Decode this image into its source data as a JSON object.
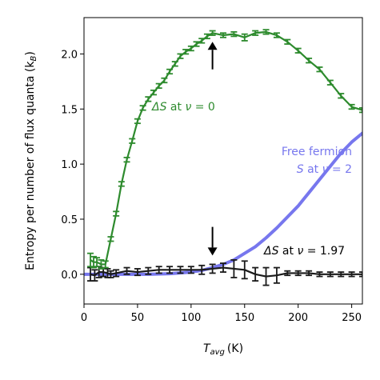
{
  "chart_data": {
    "type": "line",
    "xlabel_main": "T",
    "xlabel_sub": "avg",
    "xlabel_unit": "(K)",
    "ylabel": "Entropy per number of flux quanta (k",
    "ylabel_sub": "B",
    "ylabel_close": ")",
    "xlim": [
      0,
      260
    ],
    "ylim": [
      -0.27,
      2.33
    ],
    "xticks": [
      0,
      50,
      100,
      150,
      200,
      250
    ],
    "yticks": [
      0.0,
      0.5,
      1.0,
      1.5,
      2.0
    ],
    "series": [
      {
        "name_parts": [
          "ΔS",
          " at ",
          "ν",
          " = 0"
        ],
        "color": "#2e8b2e",
        "x": [
          6,
          9,
          12,
          16,
          20,
          25,
          30,
          35,
          40,
          45,
          50,
          55,
          60,
          65,
          70,
          75,
          80,
          85,
          90,
          95,
          100,
          105,
          110,
          115,
          120,
          130,
          140,
          150,
          160,
          170,
          180,
          190,
          200,
          210,
          220,
          230,
          240,
          250,
          260
        ],
        "y": [
          0.13,
          0.11,
          0.11,
          0.09,
          0.09,
          0.32,
          0.55,
          0.82,
          1.04,
          1.21,
          1.39,
          1.51,
          1.59,
          1.65,
          1.71,
          1.76,
          1.84,
          1.91,
          1.98,
          2.02,
          2.05,
          2.09,
          2.12,
          2.16,
          2.19,
          2.17,
          2.18,
          2.15,
          2.19,
          2.2,
          2.17,
          2.11,
          2.03,
          1.94,
          1.86,
          1.74,
          1.62,
          1.52,
          1.49
        ],
        "err": [
          0.06,
          0.05,
          0.04,
          0.04,
          0.03,
          0.02,
          0.02,
          0.02,
          0.02,
          0.02,
          0.02,
          0.02,
          0.02,
          0.02,
          0.02,
          0.02,
          0.02,
          0.02,
          0.02,
          0.02,
          0.02,
          0.02,
          0.02,
          0.02,
          0.02,
          0.02,
          0.02,
          0.03,
          0.02,
          0.02,
          0.02,
          0.02,
          0.02,
          0.02,
          0.02,
          0.02,
          0.02,
          0.02,
          0.02
        ]
      },
      {
        "name_parts": [
          "Free fermion",
          "S",
          " at ",
          "ν",
          " = 2"
        ],
        "color": "#7777ee",
        "x": [
          0,
          20,
          40,
          60,
          80,
          100,
          110,
          120,
          130,
          140,
          150,
          160,
          170,
          180,
          190,
          200,
          210,
          220,
          230,
          240,
          250,
          260
        ],
        "y": [
          0.0,
          0.0,
          0.0,
          0.0,
          0.005,
          0.02,
          0.035,
          0.06,
          0.09,
          0.13,
          0.19,
          0.25,
          0.33,
          0.42,
          0.52,
          0.62,
          0.74,
          0.86,
          0.98,
          1.1,
          1.2,
          1.28
        ]
      },
      {
        "name_parts": [
          "ΔS",
          " at ",
          "ν",
          " = 1.97"
        ],
        "color": "#1a1a1a",
        "x": [
          6,
          10,
          14,
          18,
          22,
          25,
          30,
          40,
          50,
          60,
          70,
          80,
          90,
          100,
          110,
          120,
          130,
          140,
          150,
          160,
          170,
          180,
          190,
          200,
          210,
          220,
          230,
          240,
          250,
          260
        ],
        "y": [
          0.0,
          -0.01,
          0.02,
          0.02,
          0.01,
          0.0,
          0.01,
          0.03,
          0.02,
          0.03,
          0.04,
          0.04,
          0.04,
          0.04,
          0.04,
          0.05,
          0.06,
          0.05,
          0.04,
          0.0,
          -0.02,
          -0.01,
          0.01,
          0.01,
          0.01,
          0.0,
          0.0,
          0.0,
          0.0,
          0.0
        ],
        "err": [
          0.06,
          0.05,
          0.05,
          0.04,
          0.04,
          0.03,
          0.03,
          0.03,
          0.03,
          0.03,
          0.03,
          0.03,
          0.03,
          0.03,
          0.04,
          0.04,
          0.04,
          0.08,
          0.08,
          0.06,
          0.08,
          0.07,
          0.02,
          0.02,
          0.02,
          0.02,
          0.02,
          0.02,
          0.02,
          0.02
        ]
      }
    ],
    "arrows": [
      {
        "x": 120,
        "y_from": 1.86,
        "y_to": 2.11
      },
      {
        "x": 120,
        "y_from": 0.43,
        "y_to": 0.17
      }
    ]
  }
}
